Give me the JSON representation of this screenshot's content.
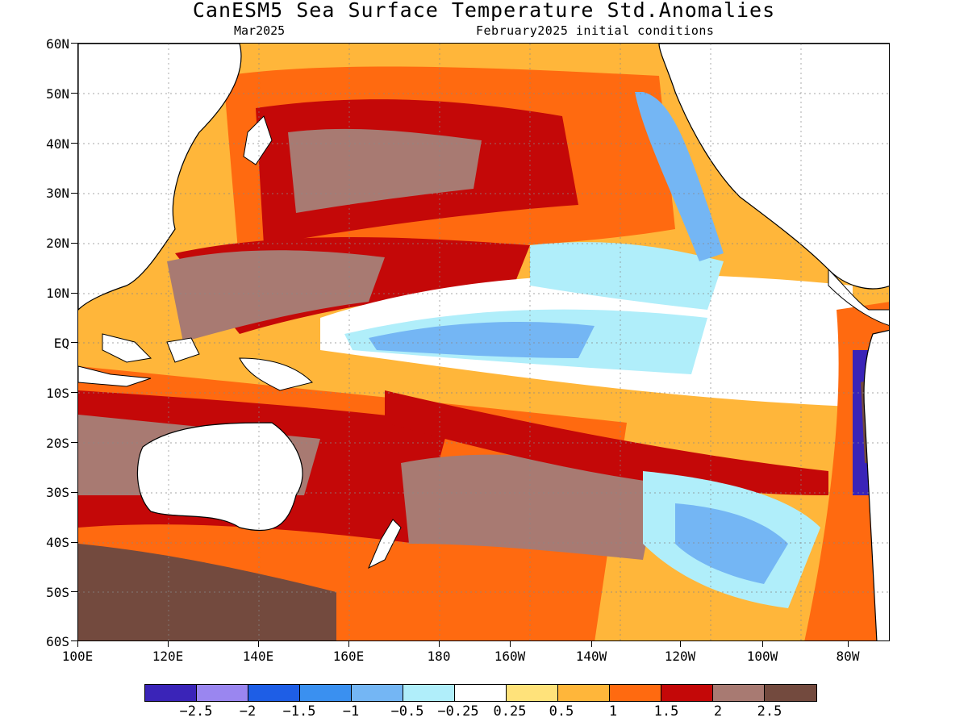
{
  "title": "CanESM5 Sea Surface Temperature Std.Anomalies",
  "subtitle_left": "Mar2025",
  "subtitle_right": "February2025 initial conditions",
  "y_labels": [
    "60N",
    "50N",
    "40N",
    "30N",
    "20N",
    "10N",
    "EQ",
    "10S",
    "20S",
    "30S",
    "40S",
    "50S",
    "60S"
  ],
  "x_labels": [
    "100E",
    "120E",
    "140E",
    "160E",
    "180",
    "160W",
    "140W",
    "120W",
    "100W",
    "80W"
  ],
  "colorbar": {
    "colors": [
      "#3a24b8",
      "#9a86f0",
      "#1e5ee6",
      "#3a90f0",
      "#74b6f4",
      "#b0eefa",
      "#ffffff",
      "#ffe27a",
      "#ffb63a",
      "#ff6a10",
      "#c40808",
      "#a87a72",
      "#734a3e"
    ],
    "labels": [
      "-2.5",
      "-2",
      "-1.5",
      "-1",
      "-0.5",
      "-0.25",
      "0.25",
      "0.5",
      "1",
      "1.5",
      "2",
      "2.5"
    ]
  },
  "map": {
    "region": "Pacific Ocean 100E-70W, 60S-60N",
    "variable": "Sea Surface Temperature Standardized Anomaly"
  }
}
